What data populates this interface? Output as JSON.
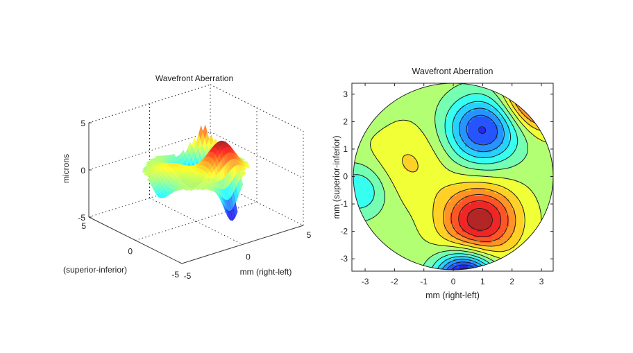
{
  "chart_data": [
    {
      "type": "surface",
      "title": "Wavefront Aberration",
      "xlabel": "mm (right-left)",
      "ylabel": "(superior-inferior)",
      "zlabel": "microns",
      "xlim": [
        -5,
        5
      ],
      "ylim": [
        -5,
        5
      ],
      "zlim": [
        -5,
        5
      ],
      "xticks": [
        "-5",
        "0",
        "5"
      ],
      "yticks": [
        "5",
        "0",
        "-5"
      ],
      "zticks": [
        "5",
        "0",
        "-5"
      ],
      "grid": true,
      "colormap": "jet",
      "pupil_radius_mm": 3.4,
      "features": [
        {
          "kind": "peak",
          "x": 0.9,
          "y": -1.6
        },
        {
          "kind": "trough",
          "x": 1.0,
          "y": 1.7
        },
        {
          "kind": "peak",
          "x": 2.8,
          "y": 2.8
        },
        {
          "kind": "trough",
          "x": 0.3,
          "y": -3.5
        }
      ]
    },
    {
      "type": "contour",
      "title": "Wavefront Aberration",
      "xlabel": "mm (right-left)",
      "ylabel": "mm (superior-inferior)",
      "xlim": [
        -3.45,
        3.4
      ],
      "ylim": [
        -3.45,
        3.4
      ],
      "xticks": [
        "-3",
        "-2",
        "-1",
        "0",
        "1",
        "2",
        "3"
      ],
      "yticks": [
        "3",
        "2",
        "1",
        "0",
        "-1",
        "-2",
        "-3"
      ],
      "colormap": "jet",
      "filled": true,
      "pupil_radius_mm": 3.4
    }
  ]
}
